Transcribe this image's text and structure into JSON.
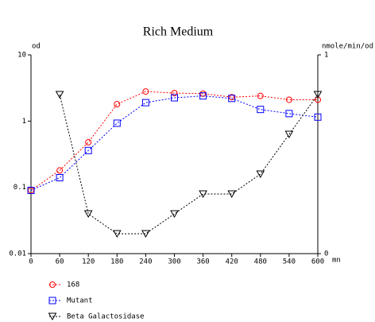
{
  "chart_data": {
    "type": "line",
    "title": "Rich Medium",
    "ylabel": "od",
    "y2label": "nmole/min/od",
    "xlabel": "mn",
    "x": [
      0,
      60,
      120,
      180,
      240,
      300,
      360,
      420,
      480,
      540,
      600
    ],
    "xlim": [
      0,
      600
    ],
    "xticks": [
      0,
      60,
      120,
      180,
      240,
      300,
      360,
      420,
      480,
      540,
      600
    ],
    "ylim": [
      0.01,
      10
    ],
    "yticks": [
      10,
      1,
      0.1,
      0.01
    ],
    "yscale": "log",
    "y2lim": [
      0,
      1
    ],
    "y2ticks": [
      1,
      0
    ],
    "grid": false,
    "legend": "bottom-left",
    "series": [
      {
        "name": "168",
        "color": "#ff0000",
        "marker": "circle",
        "values": [
          0.09,
          0.18,
          0.48,
          1.8,
          2.8,
          2.65,
          2.6,
          2.3,
          2.4,
          2.1,
          2.1
        ]
      },
      {
        "name": "Mutant",
        "color": "#0000ff",
        "marker": "square",
        "values": [
          0.09,
          0.14,
          0.36,
          0.93,
          1.9,
          2.25,
          2.4,
          2.2,
          1.5,
          1.3,
          1.15
        ]
      },
      {
        "name": "Beta Galactosidase",
        "color": "#000000",
        "marker": "triangle",
        "axis": "y2",
        "values": [
          null,
          0.8,
          0.2,
          0.1,
          0.1,
          0.2,
          0.3,
          0.3,
          0.4,
          0.6,
          0.8
        ]
      }
    ]
  }
}
